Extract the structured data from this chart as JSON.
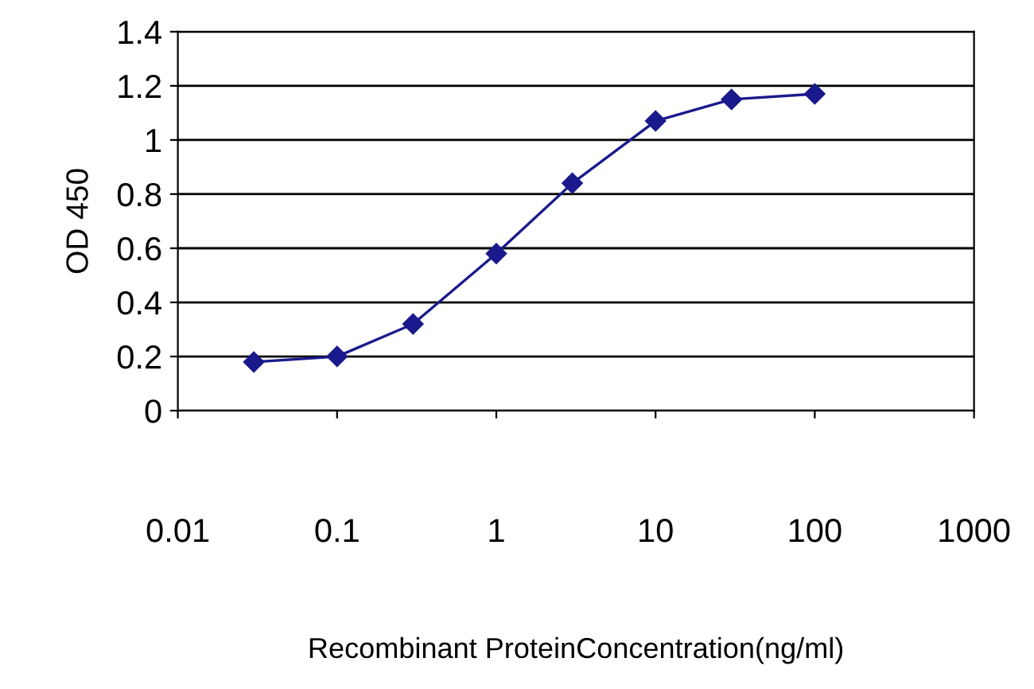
{
  "chart_data": {
    "type": "line",
    "xlabel": "Recombinant ProteinConcentration(ng/ml)",
    "ylabel": "OD 450",
    "x": [
      0.03,
      0.1,
      0.3,
      1,
      3,
      10,
      30,
      100
    ],
    "series": [
      {
        "color": "#1a1a8c",
        "values": [
          0.18,
          0.2,
          0.32,
          0.58,
          0.84,
          1.07,
          1.15,
          1.17
        ]
      }
    ],
    "log": "x",
    "xlim": [
      0.01,
      1000
    ],
    "xticks": [
      0.01,
      0.1,
      1,
      10,
      100,
      1000
    ],
    "ylim": [
      0,
      1.4
    ],
    "yticks": [
      0,
      0.2,
      0.4,
      0.6,
      0.8,
      1,
      1.2,
      1.4
    ],
    "grid": "y",
    "marker": "diamond",
    "line_style": "solid",
    "legend": false
  }
}
